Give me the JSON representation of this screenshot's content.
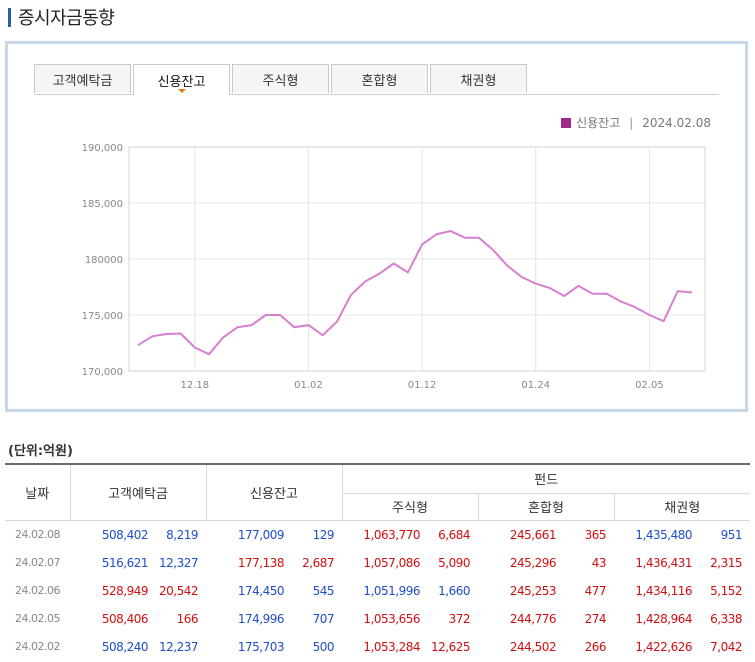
{
  "page_title": "증시자금동향",
  "tabs": [
    {
      "label": "고객예탁금",
      "active": false
    },
    {
      "label": "신용잔고",
      "active": true
    },
    {
      "label": "주식형",
      "active": false
    },
    {
      "label": "혼합형",
      "active": false
    },
    {
      "label": "채권형",
      "active": false
    }
  ],
  "legend": {
    "series": "신용잔고",
    "divider": "|",
    "date": "2024.02.08",
    "color": "#9e2b8c"
  },
  "chart_data": {
    "type": "line",
    "series": [
      {
        "name": "신용잔고",
        "color": "#d77fcf",
        "values": [
          172300,
          173100,
          173300,
          173350,
          172100,
          171500,
          173000,
          173900,
          174100,
          175000,
          175000,
          173900,
          174100,
          173200,
          174400,
          176800,
          178000,
          178700,
          179600,
          178800,
          181300,
          182200,
          182500,
          181900,
          181900,
          180800,
          179400,
          178400,
          177800,
          177400,
          176700,
          177600,
          176900,
          176900,
          176200,
          175700,
          175000,
          174450,
          177138,
          177009
        ]
      }
    ],
    "x_tick_labels": [
      "12.18",
      "01.02",
      "01.12",
      "01.24",
      "02.05"
    ],
    "x_tick_indices": [
      4,
      12,
      20,
      28,
      36
    ],
    "ylim": [
      170000,
      190000
    ],
    "y_ticks": [
      170000,
      175000,
      180000,
      185000,
      190000
    ],
    "y_tick_labels": [
      "170,000",
      "175,000",
      "180000",
      "185,000",
      "190,000"
    ],
    "grid": true
  },
  "unit_label": "(단위:억원)",
  "table": {
    "headers": {
      "date": "날짜",
      "deposit": "고객예탁금",
      "credit": "신용잔고",
      "fund": "펀드",
      "stock": "주식형",
      "mixed": "혼합형",
      "bond": "채권형"
    },
    "rows": [
      {
        "date": "24.02.08",
        "deposit": "508,402",
        "deposit_chg": "8,219",
        "credit": "177,009",
        "credit_chg": "129",
        "stock": "1,063,770",
        "stock_chg": "6,684",
        "mixed": "245,661",
        "mixed_chg": "365",
        "bond": "1,435,480",
        "bond_chg": "951",
        "colors": [
          "blue",
          "blue",
          "blue",
          "blue",
          "red",
          "red",
          "red",
          "red",
          "blue",
          "blue"
        ]
      },
      {
        "date": "24.02.07",
        "deposit": "516,621",
        "deposit_chg": "12,327",
        "credit": "177,138",
        "credit_chg": "2,687",
        "stock": "1,057,086",
        "stock_chg": "5,090",
        "mixed": "245,296",
        "mixed_chg": "43",
        "bond": "1,436,431",
        "bond_chg": "2,315",
        "colors": [
          "blue",
          "blue",
          "red",
          "red",
          "red",
          "red",
          "red",
          "red",
          "red",
          "red"
        ]
      },
      {
        "date": "24.02.06",
        "deposit": "528,949",
        "deposit_chg": "20,542",
        "credit": "174,450",
        "credit_chg": "545",
        "stock": "1,051,996",
        "stock_chg": "1,660",
        "mixed": "245,253",
        "mixed_chg": "477",
        "bond": "1,434,116",
        "bond_chg": "5,152",
        "colors": [
          "red",
          "red",
          "blue",
          "blue",
          "blue",
          "blue",
          "red",
          "red",
          "red",
          "red"
        ]
      },
      {
        "date": "24.02.05",
        "deposit": "508,406",
        "deposit_chg": "166",
        "credit": "174,996",
        "credit_chg": "707",
        "stock": "1,053,656",
        "stock_chg": "372",
        "mixed": "244,776",
        "mixed_chg": "274",
        "bond": "1,428,964",
        "bond_chg": "6,338",
        "colors": [
          "red",
          "red",
          "blue",
          "blue",
          "red",
          "red",
          "red",
          "red",
          "red",
          "red"
        ]
      },
      {
        "date": "24.02.02",
        "deposit": "508,240",
        "deposit_chg": "12,237",
        "credit": "175,703",
        "credit_chg": "500",
        "stock": "1,053,284",
        "stock_chg": "12,625",
        "mixed": "244,502",
        "mixed_chg": "266",
        "bond": "1,422,626",
        "bond_chg": "7,042",
        "colors": [
          "blue",
          "blue",
          "blue",
          "blue",
          "red",
          "red",
          "red",
          "red",
          "red",
          "red"
        ]
      }
    ]
  }
}
